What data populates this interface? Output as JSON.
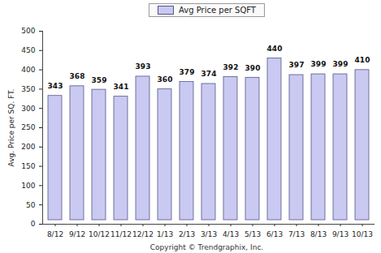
{
  "chart_data": {
    "type": "bar",
    "y_label": "Avg. Price per SQ. FT.",
    "caption": "Copyright © Trendgraphix, Inc.",
    "categories": [
      "8/12",
      "9/12",
      "10/12",
      "11/12",
      "12/12",
      "1/13",
      "2/13",
      "3/13",
      "4/13",
      "5/13",
      "6/13",
      "7/13",
      "8/13",
      "9/13",
      "10/13"
    ],
    "series": [
      {
        "name": "Avg Price per SQFT",
        "color": "#c9c9f2",
        "values": [
          343,
          368,
          359,
          341,
          393,
          360,
          379,
          374,
          392,
          390,
          440,
          397,
          399,
          399,
          410
        ]
      }
    ],
    "ylim": [
      0,
      500
    ],
    "yticks": [
      0,
      50,
      100,
      150,
      200,
      250,
      300,
      350,
      400,
      450,
      500
    ],
    "grid": false,
    "legend": "top",
    "data_labels": true
  }
}
